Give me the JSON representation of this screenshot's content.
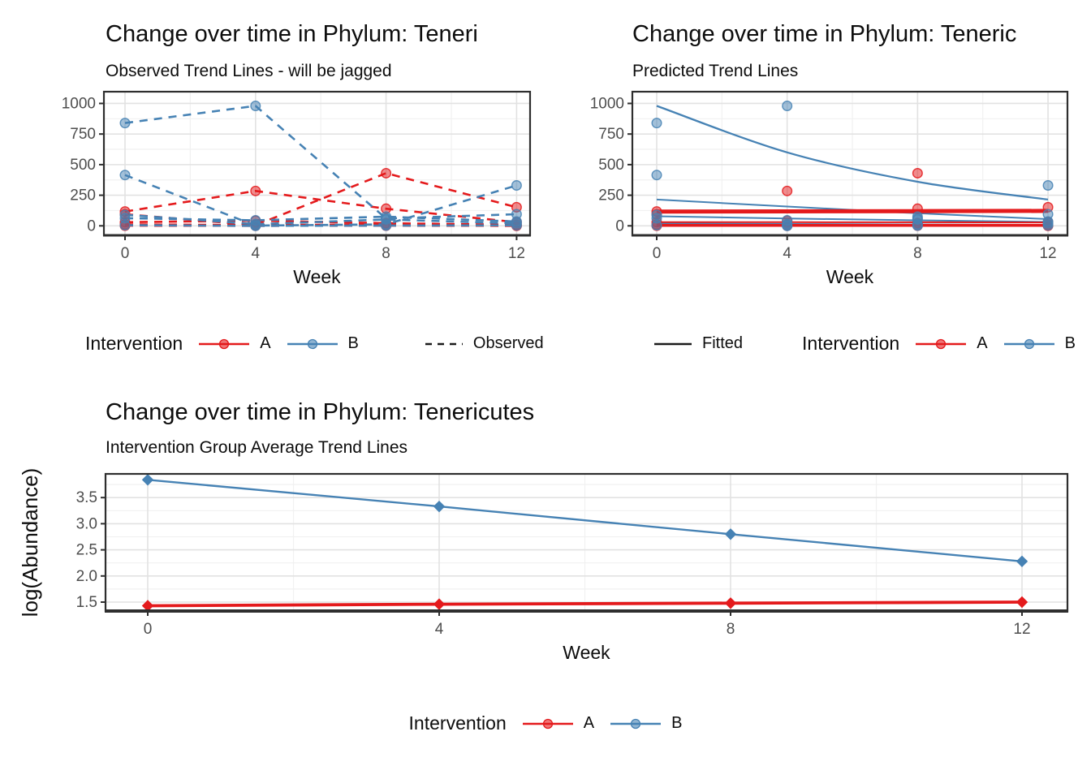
{
  "colors": {
    "red": "#E41A1C",
    "blue": "#4682B4",
    "black": "#1A1A1A",
    "grid_major": "#E2E2E2",
    "grid_minor": "#F1F1F1",
    "panel_border": "#2E2E2E",
    "tick_label": "#4D4D4D",
    "background": "#FFFFFF"
  },
  "chart_data": [
    {
      "type": "line",
      "title": "Change over time in Phylum: Teneri",
      "subtitle": "Observed Trend Lines - will be jagged",
      "xlabel": "Week",
      "ylabel": "",
      "x": [
        0,
        4,
        8,
        12
      ],
      "xticks": [
        "0",
        "4",
        "8",
        "12"
      ],
      "yticks": [
        "0",
        "250",
        "500",
        "750",
        "1000"
      ],
      "ylim": [
        0,
        1050
      ],
      "grid": true,
      "line_style": "dashed",
      "marker": "circle",
      "legend_position": "bottom",
      "series": [
        {
          "group": "A",
          "color": "red",
          "values": [
            117,
            285,
            140,
            30
          ]
        },
        {
          "group": "A",
          "color": "red",
          "values": [
            95,
            5,
            430,
            152
          ]
        },
        {
          "group": "A",
          "color": "red",
          "values": [
            30,
            42,
            22,
            8
          ]
        },
        {
          "group": "A",
          "color": "red",
          "values": [
            12,
            6,
            12,
            3
          ]
        },
        {
          "group": "A",
          "color": "red",
          "values": [
            1,
            0,
            1,
            0
          ]
        },
        {
          "group": "B",
          "color": "blue",
          "values": [
            840,
            980,
            60,
            95
          ]
        },
        {
          "group": "B",
          "color": "blue",
          "values": [
            415,
            2,
            12,
            330
          ]
        },
        {
          "group": "B",
          "color": "blue",
          "values": [
            62,
            45,
            75,
            35
          ]
        },
        {
          "group": "B",
          "color": "blue",
          "values": [
            90,
            14,
            52,
            20
          ]
        },
        {
          "group": "B",
          "color": "blue",
          "values": [
            5,
            0,
            2,
            4
          ]
        }
      ],
      "legend": {
        "entries": [
          {
            "type": "title",
            "text": "Intervention"
          },
          {
            "type": "key",
            "label": "A",
            "color": "red",
            "marker": true,
            "line": "solid"
          },
          {
            "type": "key",
            "label": "B",
            "color": "blue",
            "marker": true,
            "line": "solid"
          },
          {
            "type": "key",
            "label": "Observed",
            "color": "black",
            "marker": false,
            "line": "dashed",
            "spacer": 62
          }
        ]
      }
    },
    {
      "type": "line",
      "title": "Change over time in Phylum: Teneric",
      "subtitle": "Predicted Trend Lines",
      "xlabel": "Week",
      "ylabel": "",
      "x": [
        0,
        4,
        8,
        12
      ],
      "xticks": [
        "0",
        "4",
        "8",
        "12"
      ],
      "yticks": [
        "0",
        "250",
        "500",
        "750",
        "1000"
      ],
      "ylim": [
        0,
        1050
      ],
      "grid": true,
      "line_style": "solid",
      "marker": "circle",
      "legend_position": "bottom",
      "series": [
        {
          "group": "B",
          "color": "blue",
          "values": [
            980,
            600,
            360,
            215
          ],
          "width": 2.3,
          "smooth": true
        },
        {
          "group": "B",
          "color": "blue",
          "values": [
            215,
            158,
            103,
            55
          ],
          "width": 2.0,
          "smooth": true
        },
        {
          "group": "B",
          "color": "blue",
          "values": [
            78,
            60,
            45,
            32
          ],
          "width": 2.0,
          "smooth": true
        },
        {
          "group": "B",
          "color": "blue",
          "values": [
            20,
            15,
            11,
            8
          ],
          "width": 2.0
        },
        {
          "group": "B",
          "color": "blue",
          "values": [
            4,
            3,
            2,
            2
          ],
          "width": 2.0
        },
        {
          "group": "A",
          "color": "red",
          "values": [
            117,
            118,
            120,
            122
          ],
          "width": 5.0
        },
        {
          "group": "A",
          "color": "red",
          "values": [
            30,
            30,
            29,
            28
          ],
          "width": 2.0
        },
        {
          "group": "A",
          "color": "red",
          "values": [
            3,
            3,
            3,
            3
          ],
          "width": 3.5
        }
      ],
      "points": [
        {
          "group": "A",
          "color": "red",
          "values": [
            117,
            285,
            140,
            30
          ]
        },
        {
          "group": "A",
          "color": "red",
          "values": [
            95,
            5,
            430,
            152
          ]
        },
        {
          "group": "A",
          "color": "red",
          "values": [
            30,
            42,
            22,
            8
          ]
        },
        {
          "group": "A",
          "color": "red",
          "values": [
            12,
            6,
            12,
            3
          ]
        },
        {
          "group": "A",
          "color": "red",
          "values": [
            1,
            0,
            1,
            0
          ]
        },
        {
          "group": "B",
          "color": "blue",
          "values": [
            840,
            980,
            60,
            95
          ]
        },
        {
          "group": "B",
          "color": "blue",
          "values": [
            415,
            2,
            12,
            330
          ]
        },
        {
          "group": "B",
          "color": "blue",
          "values": [
            62,
            45,
            75,
            35
          ]
        },
        {
          "group": "B",
          "color": "blue",
          "values": [
            90,
            14,
            52,
            20
          ]
        },
        {
          "group": "B",
          "color": "blue",
          "values": [
            5,
            0,
            2,
            4
          ]
        }
      ],
      "legend": {
        "entries": [
          {
            "type": "key",
            "label": "Fitted",
            "color": "black",
            "marker": false,
            "line": "solid"
          },
          {
            "type": "title",
            "text": "Intervention",
            "spacer": 55
          },
          {
            "type": "key",
            "label": "A",
            "color": "red",
            "marker": true,
            "line": "solid"
          },
          {
            "type": "key",
            "label": "B",
            "color": "blue",
            "marker": true,
            "line": "solid"
          }
        ]
      }
    },
    {
      "type": "line",
      "title": "Change over time in Phylum: Tenericutes",
      "subtitle": "Intervention Group Average Trend Lines",
      "xlabel": "Week",
      "ylabel": "log(Abundance)",
      "x": [
        0,
        4,
        8,
        12
      ],
      "xticks": [
        "0",
        "4",
        "8",
        "12"
      ],
      "yticks": [
        "1.5",
        "2.0",
        "2.5",
        "3.0",
        "3.5"
      ],
      "ylim": [
        1.35,
        3.95
      ],
      "grid": true,
      "line_style": "solid",
      "marker": "diamond",
      "legend_position": "bottom",
      "series": [
        {
          "group": "B",
          "color": "blue",
          "values": [
            3.84,
            3.33,
            2.8,
            2.28
          ],
          "width": 2.4
        },
        {
          "group": "A",
          "color": "red",
          "values": [
            1.43,
            1.46,
            1.48,
            1.5
          ],
          "width": 3.8
        }
      ],
      "legend": {
        "entries": [
          {
            "type": "title",
            "text": "Intervention"
          },
          {
            "type": "key",
            "label": "A",
            "color": "red",
            "marker": true,
            "line": "solid"
          },
          {
            "type": "key",
            "label": "B",
            "color": "blue",
            "marker": true,
            "line": "solid"
          }
        ]
      }
    }
  ]
}
